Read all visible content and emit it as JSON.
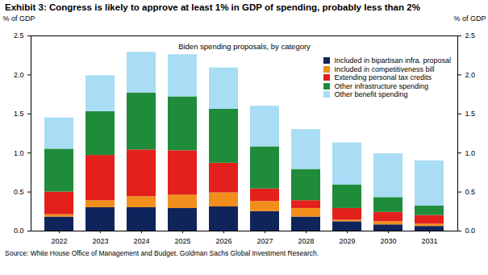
{
  "chart_data": {
    "type": "bar",
    "title": "Exhibit 3: Congress is likely to approve at least 1% in GDP of spending, probably less than 2%",
    "subtitle": "Biden spending proposals, by category",
    "source": "Source: White House Office of Management and Budget. Goldman Sachs Global Investment Research.",
    "y_label": "% of GDP",
    "y2_label": "% of GDP",
    "categories": [
      "2022",
      "2023",
      "2024",
      "2025",
      "2026",
      "2027",
      "2028",
      "2029",
      "2030",
      "2031"
    ],
    "series": [
      {
        "name": "Included in bipartisan infra. proposal",
        "color": "#10245c",
        "values": [
          0.18,
          0.3,
          0.3,
          0.29,
          0.31,
          0.25,
          0.18,
          0.12,
          0.08,
          0.06
        ]
      },
      {
        "name": "Included in competitiveness bill",
        "color": "#f28e1c",
        "values": [
          0.03,
          0.09,
          0.14,
          0.17,
          0.18,
          0.13,
          0.11,
          0.02,
          0.04,
          0.03
        ]
      },
      {
        "name": "Extending personal tax credits",
        "color": "#e3201b",
        "values": [
          0.29,
          0.58,
          0.6,
          0.57,
          0.38,
          0.16,
          0.1,
          0.15,
          0.12,
          0.11
        ]
      },
      {
        "name": "Other infrastructure spending",
        "color": "#1e8c3a",
        "values": [
          0.55,
          0.56,
          0.73,
          0.69,
          0.69,
          0.54,
          0.4,
          0.3,
          0.19,
          0.12
        ]
      },
      {
        "name": "Other benefit spending",
        "color": "#a9dcf5",
        "values": [
          0.4,
          0.46,
          0.52,
          0.54,
          0.53,
          0.52,
          0.51,
          0.54,
          0.56,
          0.58
        ]
      }
    ],
    "stacked": true,
    "legend": "top-right",
    "grid": false,
    "ylim": [
      0,
      2.5
    ],
    "yticks": [
      {
        "value": 0,
        "label": "0.0"
      },
      {
        "value": 0.5,
        "label": "0.5"
      },
      {
        "value": 1,
        "label": "1.0"
      },
      {
        "value": 1.5,
        "label": "1.5"
      },
      {
        "value": 2,
        "label": "2.0"
      },
      {
        "value": 2.5,
        "label": "2.5"
      }
    ],
    "y2lim": [
      0,
      2.5
    ],
    "y2ticks": [
      {
        "value": 0,
        "label": "0.0"
      },
      {
        "value": 0.5,
        "label": "0.5"
      },
      {
        "value": 1,
        "label": "1.0"
      },
      {
        "value": 1.5,
        "label": "1.5"
      },
      {
        "value": 2,
        "label": "2.0"
      },
      {
        "value": 2.5,
        "label": "2.5"
      }
    ]
  }
}
